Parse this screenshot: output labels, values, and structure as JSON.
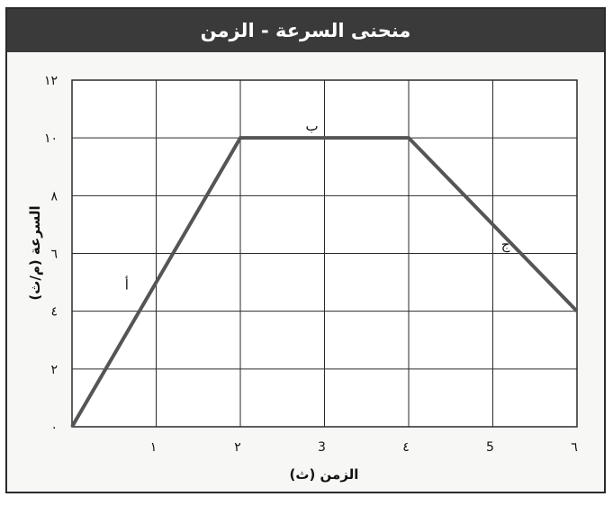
{
  "chart_data": {
    "type": "line",
    "title": "منحنى السرعة - الزمن",
    "xlabel": "الزمن (ث)",
    "ylabel": "السرعة (م/ث)",
    "xlim": [
      0,
      6
    ],
    "ylim": [
      0,
      12
    ],
    "grid": true,
    "x_tick_labels": [
      "١",
      "٢",
      "3",
      "٤",
      "5",
      "٦"
    ],
    "y_tick_labels": [
      "٠",
      "٢",
      "٤",
      "٦",
      "٨",
      "١٠",
      "١٢"
    ],
    "series": [
      {
        "x": [
          0,
          2,
          4,
          6
        ],
        "y": [
          0,
          10,
          10,
          4
        ],
        "color": "#555555"
      }
    ],
    "annotations": [
      {
        "text": "أ",
        "x": 0.8,
        "y": 5
      },
      {
        "text": "ب",
        "x": 3,
        "y": 10.5
      },
      {
        "text": "ج",
        "x": 5.3,
        "y": 6.4
      }
    ]
  }
}
